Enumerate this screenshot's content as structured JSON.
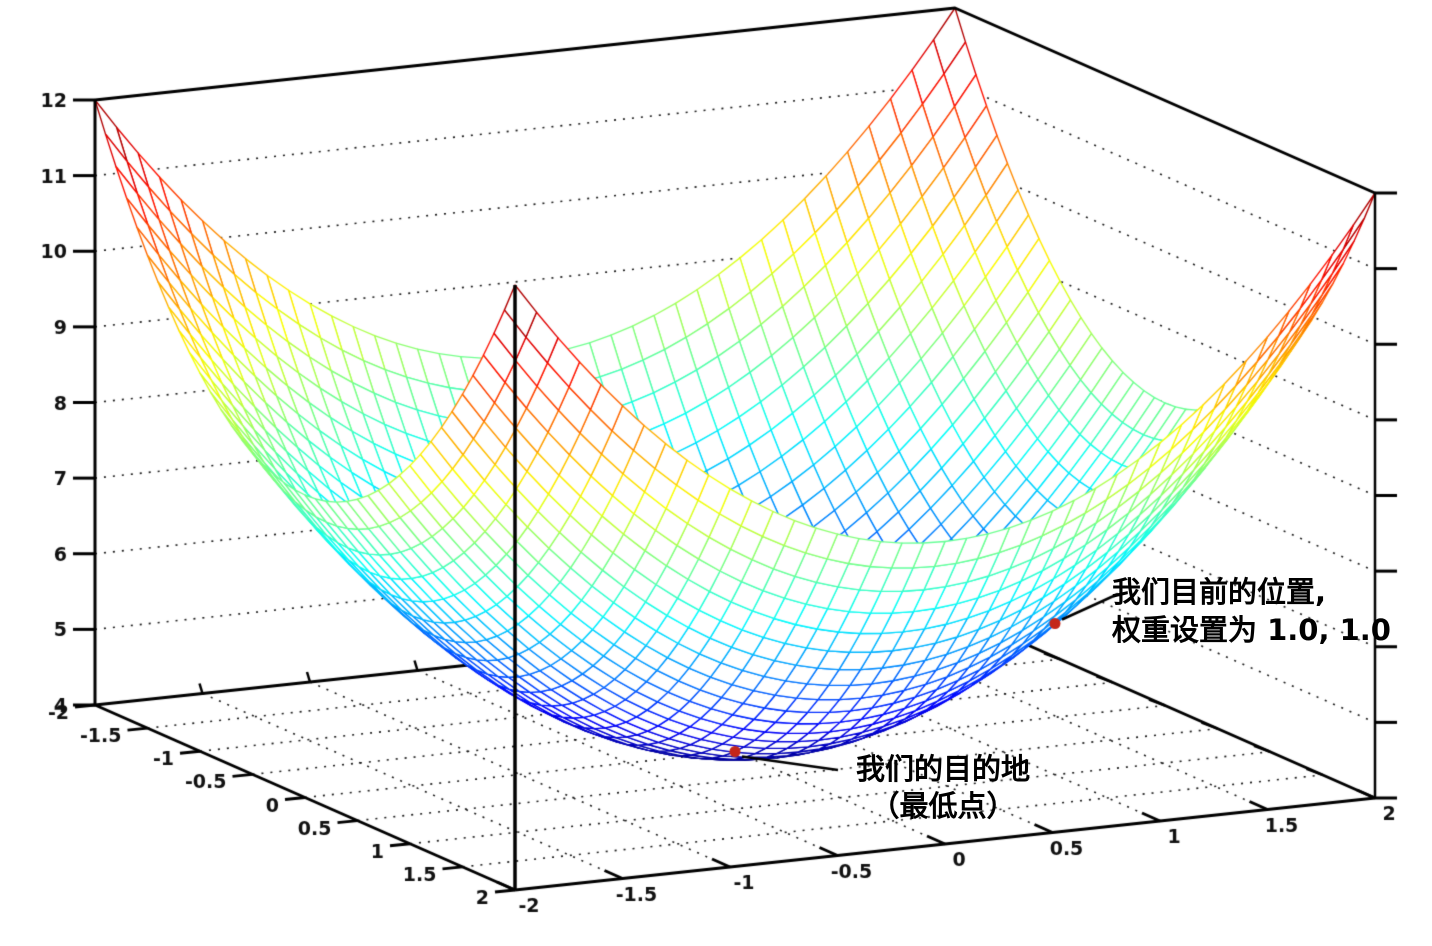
{
  "chart_data": {
    "type": "surface",
    "title": "",
    "formula": "z = x^2 + y^2 + 4",
    "z_offset": 4,
    "x_range": [
      -2,
      2
    ],
    "y_range": [
      -2,
      2
    ],
    "z_range": [
      4,
      12
    ],
    "mesh_divisions": 40,
    "colormap": "jet",
    "grid_style": "dotted",
    "x_ticks": [
      -2,
      -1.5,
      -1,
      -0.5,
      0,
      0.5,
      1,
      1.5,
      2
    ],
    "y_ticks": [
      -2,
      -1.5,
      -1,
      -0.5,
      0,
      0.5,
      1,
      1.5,
      2
    ],
    "z_ticks": [
      4,
      5,
      6,
      7,
      8,
      9,
      10,
      11,
      12
    ],
    "points": [
      {
        "id": "current-position",
        "x": 1,
        "y": 1,
        "z": 6
      },
      {
        "id": "destination",
        "x": 0,
        "y": 0,
        "z": 4
      }
    ],
    "annotations": [
      {
        "target": "current-position",
        "lines": [
          "我们目前的位置,",
          "权重设置为 1.0, 1.0"
        ]
      },
      {
        "target": "destination",
        "lines": [
          "我们的目的地",
          "（最低点）"
        ]
      }
    ]
  },
  "colors": {
    "background": "#ffffff",
    "axis": "#000000",
    "grid_dots": "#1a1a1a",
    "tick_label": "#111111",
    "marker": "#c4261a",
    "annotation_text": "#000000"
  }
}
